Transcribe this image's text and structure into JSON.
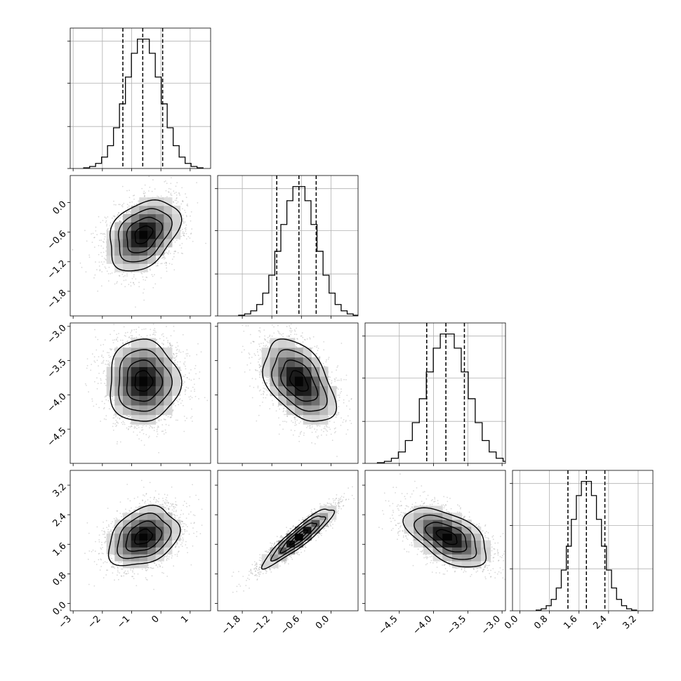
{
  "chart_data": {
    "type": "corner",
    "parameters": [
      {
        "range": [
          -3.1,
          1.7
        ],
        "ticks": [
          -3,
          -2,
          -1,
          0,
          1
        ],
        "tick_labels": [
          "−3",
          "−2",
          "−1",
          "0",
          "1"
        ],
        "mean": -0.6,
        "sd": 0.6,
        "quantiles": [
          -1.3,
          -0.62,
          0.06
        ]
      },
      {
        "range": [
          -2.3,
          0.55
        ],
        "ticks": [
          -1.8,
          -1.2,
          -0.6,
          0.0
        ],
        "tick_labels": [
          "−1.8",
          "−1.2",
          "−0.6",
          "0.0"
        ],
        "mean": -0.65,
        "sd": 0.36,
        "quantiles": [
          -1.1,
          -0.65,
          -0.3
        ]
      },
      {
        "range": [
          -5.0,
          -2.95
        ],
        "ticks": [
          -4.5,
          -4.0,
          -3.5,
          -3.0
        ],
        "tick_labels": [
          "−4.5",
          "−4.0",
          "−3.5",
          "−3.0"
        ],
        "mean": -3.8,
        "sd": 0.3,
        "quantiles": [
          -4.1,
          -3.82,
          -3.55
        ]
      },
      {
        "range": [
          -0.2,
          3.6
        ],
        "ticks": [
          0.0,
          0.8,
          1.6,
          2.4,
          3.2
        ],
        "tick_labels": [
          "0.0",
          "0.8",
          "1.6",
          "2.4",
          "3.2"
        ],
        "mean": 1.8,
        "sd": 0.4,
        "quantiles": [
          1.3,
          1.8,
          2.3
        ]
      }
    ],
    "correlations": [
      {
        "pair": [
          0,
          1
        ],
        "rho": 0.35
      },
      {
        "pair": [
          0,
          2
        ],
        "rho": 0.0
      },
      {
        "pair": [
          1,
          2
        ],
        "rho": -0.45
      },
      {
        "pair": [
          0,
          3
        ],
        "rho": 0.3
      },
      {
        "pair": [
          1,
          3
        ],
        "rho": 0.92
      },
      {
        "pair": [
          2,
          3
        ],
        "rho": -0.55
      }
    ],
    "contour_levels": [
      0.5,
      1.0,
      1.5,
      2.0
    ],
    "histogram_bins": 20,
    "grid": true
  }
}
